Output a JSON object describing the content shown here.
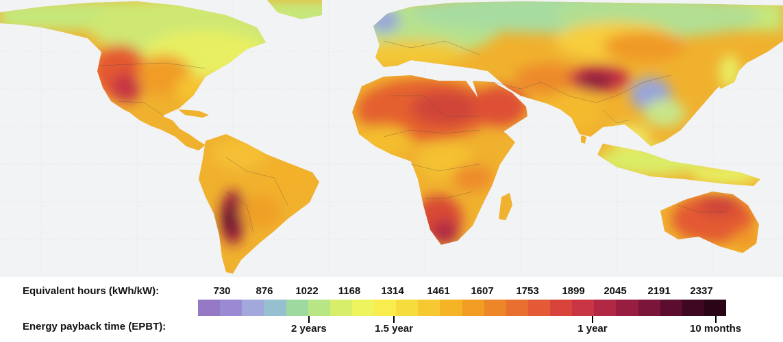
{
  "legend": {
    "hours_title": "Equivalent hours (kWh/kW):",
    "epbt_title": "Energy payback time (EPBT):",
    "hours_values": [
      "730",
      "876",
      "1022",
      "1168",
      "1314",
      "1461",
      "1607",
      "1753",
      "1899",
      "2045",
      "2191",
      "2337"
    ],
    "color_scale": [
      "#9579c4",
      "#9a8ad4",
      "#a2a8dc",
      "#96bfcf",
      "#9ed9a0",
      "#b9e684",
      "#d6ee6a",
      "#eef45e",
      "#f9ec4e",
      "#f7dc3e",
      "#f6c933",
      "#f4b425",
      "#f19c22",
      "#ec8628",
      "#e86f30",
      "#e45a36",
      "#d8443c",
      "#c93543",
      "#b12845",
      "#981d41",
      "#7c153a",
      "#5c0c2e",
      "#3f0722",
      "#2a0518"
    ],
    "epbt_labels": [
      {
        "label": "2 years",
        "frac": 0.21
      },
      {
        "label": "1.5 year",
        "frac": 0.371
      },
      {
        "label": "1 year",
        "frac": 0.747
      },
      {
        "label": "10 months",
        "frac": 0.98
      }
    ]
  },
  "map": {
    "zones": [
      {
        "name": "north-america-north",
        "color": "#d7ed68"
      },
      {
        "name": "north-america-south",
        "color": "#f3b52c"
      },
      {
        "name": "mexico",
        "color": "#d2413d"
      },
      {
        "name": "south-america",
        "color": "#f7cf3e"
      },
      {
        "name": "andes",
        "color": "#8d1b3e"
      },
      {
        "name": "europe",
        "color": "#bde48a"
      },
      {
        "name": "russia",
        "color": "#a3dba1"
      },
      {
        "name": "sahara",
        "color": "#e5612f"
      },
      {
        "name": "africa-south",
        "color": "#e0542f"
      },
      {
        "name": "arabia",
        "color": "#dd4e34"
      },
      {
        "name": "india",
        "color": "#f5b92d"
      },
      {
        "name": "china-north",
        "color": "#f09a26"
      },
      {
        "name": "tibet",
        "color": "#b72a44"
      },
      {
        "name": "sichuan",
        "color": "#98a4d8"
      },
      {
        "name": "southeast-asia",
        "color": "#dcec66"
      },
      {
        "name": "australia",
        "color": "#e35a33"
      },
      {
        "name": "ocean",
        "color": "#f2f3f5"
      }
    ]
  }
}
